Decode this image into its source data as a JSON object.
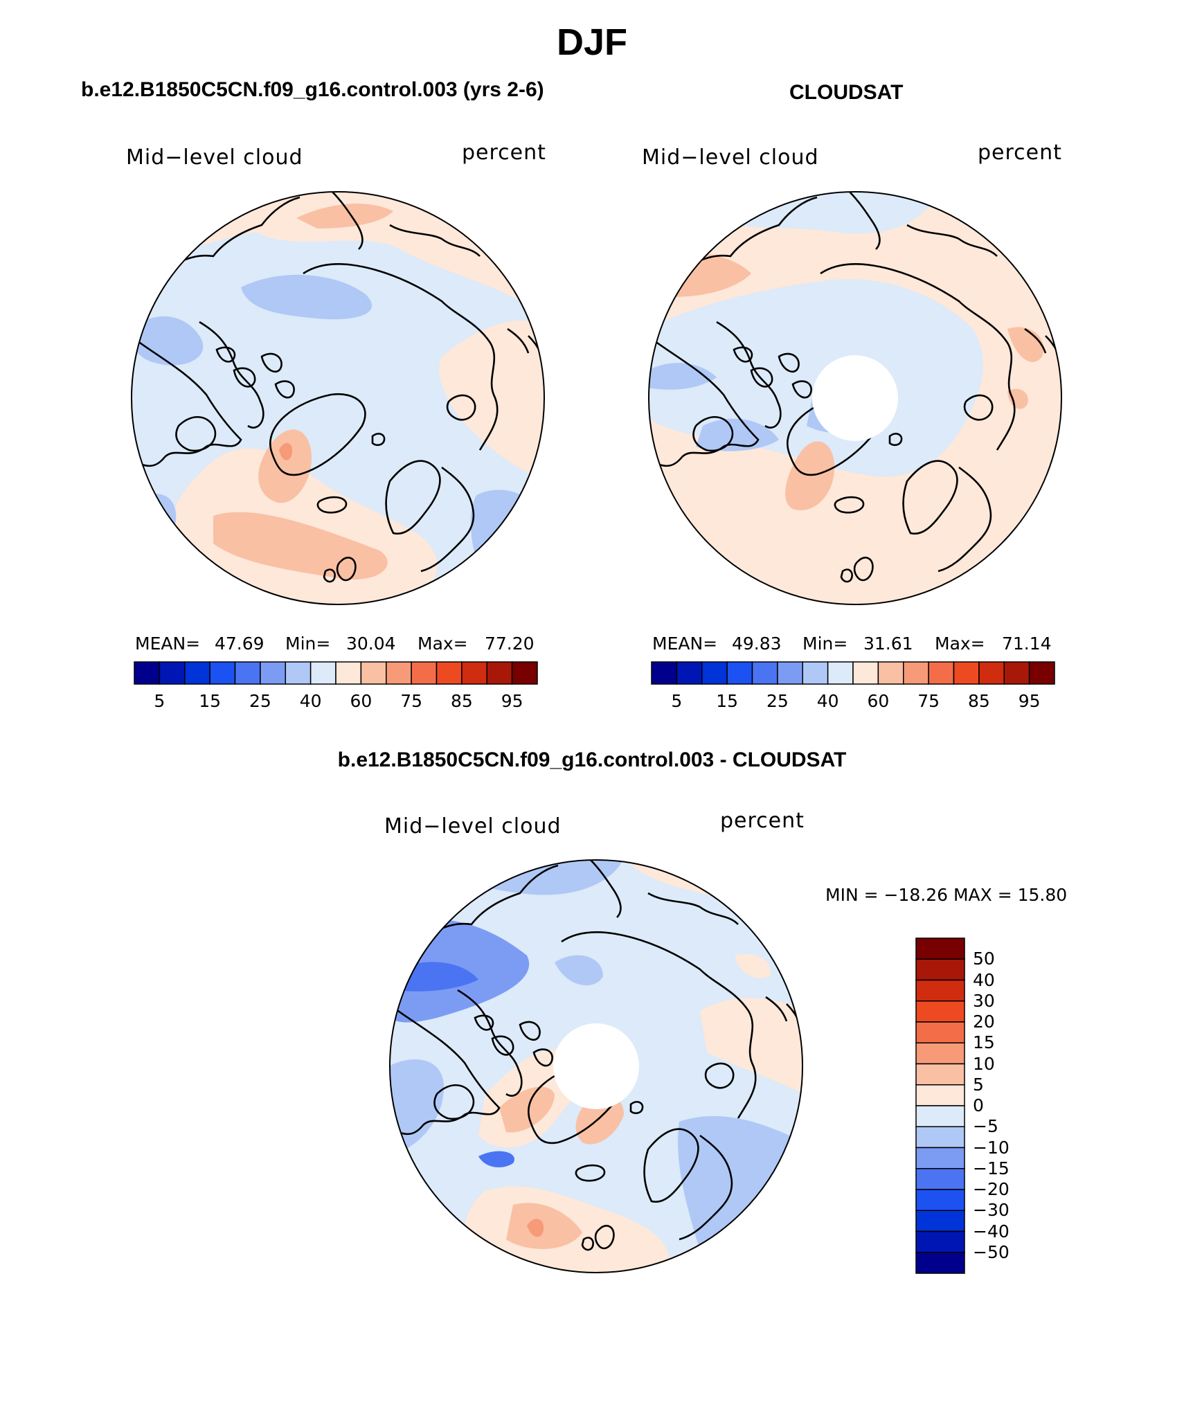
{
  "figure": {
    "title": "DJF",
    "panel_top_left_title": "b.e12.B1850C5CN.f09_g16.control.003 (yrs 2-6)",
    "panel_top_right_title": "CLOUDSAT",
    "panel_bottom_title": "b.e12.B1850C5CN.f09_g16.control.003 - CLOUDSAT"
  },
  "panels": {
    "model": {
      "left_label": "Mid−level cloud",
      "right_label": "percent",
      "mean_label": "MEAN=",
      "mean_value": "47.69",
      "min_label": "Min=",
      "min_value": "30.04",
      "max_label": "Max=",
      "max_value": "77.20"
    },
    "obs": {
      "left_label": "Mid−level cloud",
      "right_label": "percent",
      "mean_label": "MEAN=",
      "mean_value": "49.83",
      "min_label": "Min=",
      "min_value": "31.61",
      "max_label": "Max=",
      "max_value": "71.14"
    },
    "diff": {
      "left_label": "Mid−level cloud",
      "right_label": "percent",
      "minmax_text": "MIN = −18.26 MAX =   15.80"
    }
  },
  "chart_data": [
    {
      "type": "heatmap",
      "projection": "north polar stereographic",
      "title": "b.e12.B1850C5CN.f09_g16.control.003 (yrs 2-6)",
      "variable": "Mid−level cloud",
      "units": "percent",
      "mean": 47.69,
      "min": 30.04,
      "max": 77.2,
      "colorbar_levels": [
        5,
        10,
        15,
        20,
        25,
        30,
        40,
        50,
        60,
        70,
        75,
        80,
        85,
        90,
        95
      ],
      "colorbar_tick_labels": [
        "5",
        "15",
        "25",
        "40",
        "60",
        "75",
        "85",
        "95"
      ]
    },
    {
      "type": "heatmap",
      "projection": "north polar stereographic",
      "title": "CLOUDSAT",
      "variable": "Mid−level cloud",
      "units": "percent",
      "mean": 49.83,
      "min": 31.61,
      "max": 71.14,
      "colorbar_levels": [
        5,
        10,
        15,
        20,
        25,
        30,
        40,
        50,
        60,
        70,
        75,
        80,
        85,
        90,
        95
      ],
      "colorbar_tick_labels": [
        "5",
        "15",
        "25",
        "40",
        "60",
        "75",
        "85",
        "95"
      ]
    },
    {
      "type": "heatmap",
      "projection": "north polar stereographic",
      "title": "b.e12.B1850C5CN.f09_g16.control.003 - CLOUDSAT",
      "variable": "Mid−level cloud",
      "units": "percent",
      "min": -18.26,
      "max": 15.8,
      "colorbar_levels": [
        50,
        40,
        30,
        20,
        15,
        10,
        5,
        0,
        -5,
        -10,
        -15,
        -20,
        -30,
        -40,
        -50
      ],
      "colorbar_tick_labels": [
        "50",
        "40",
        "30",
        "20",
        "15",
        "10",
        "5",
        "0",
        "−5",
        "−10",
        "−15",
        "−20",
        "−30",
        "−40",
        "−50"
      ]
    }
  ],
  "colors": {
    "abs_scale": [
      "#00008c",
      "#0016b4",
      "#0034d8",
      "#1c52f2",
      "#4a74f2",
      "#7c9cf4",
      "#b0c8f6",
      "#dceaf9",
      "#fde8da",
      "#f9c0a4",
      "#f69a78",
      "#f36e48",
      "#ee4a22",
      "#d02c10",
      "#a81808",
      "#780000"
    ],
    "diff_scale": [
      "#780000",
      "#a81808",
      "#d02c10",
      "#ee4a22",
      "#f36e48",
      "#f69a78",
      "#f9c0a4",
      "#fde8da",
      "#dceaf9",
      "#b0c8f6",
      "#7c9cf4",
      "#4a74f2",
      "#1c52f2",
      "#0034d8",
      "#0016b4",
      "#00008c"
    ],
    "land_outline": "#000000"
  }
}
